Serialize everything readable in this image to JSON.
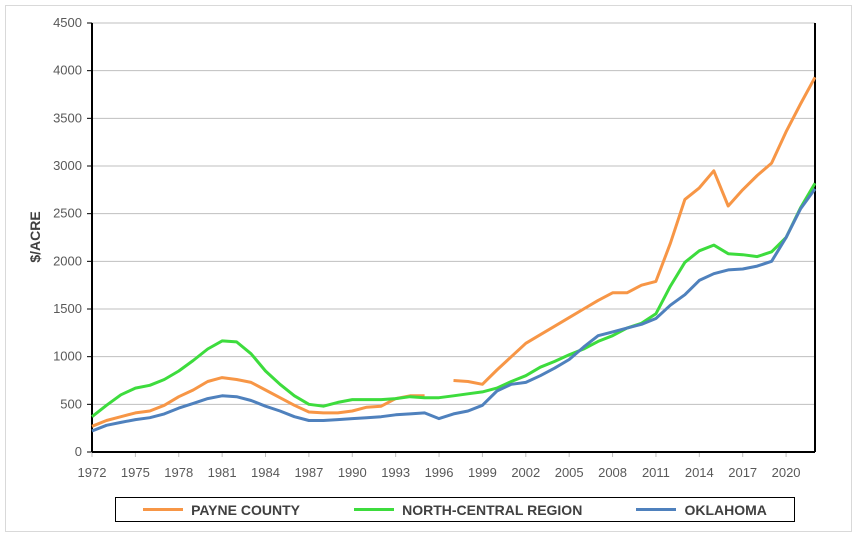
{
  "chart_data": {
    "type": "line",
    "title": "",
    "xlabel": "",
    "ylabel": "$/ACRE",
    "ylim": [
      0,
      4500
    ],
    "xlim": [
      1972,
      2022
    ],
    "yticks": [
      0,
      500,
      1000,
      1500,
      2000,
      2500,
      3000,
      3500,
      4000,
      4500
    ],
    "xticks": [
      1972,
      1975,
      1978,
      1981,
      1984,
      1987,
      1990,
      1993,
      1996,
      1999,
      2002,
      2005,
      2008,
      2011,
      2014,
      2017,
      2020
    ],
    "grid": true,
    "legend_position": "bottom",
    "x": [
      1972,
      1973,
      1974,
      1975,
      1976,
      1977,
      1978,
      1979,
      1980,
      1981,
      1982,
      1983,
      1984,
      1985,
      1986,
      1987,
      1988,
      1989,
      1990,
      1991,
      1992,
      1993,
      1994,
      1995,
      1996,
      1997,
      1998,
      1999,
      2000,
      2001,
      2002,
      2003,
      2004,
      2005,
      2006,
      2007,
      2008,
      2009,
      2010,
      2011,
      2012,
      2013,
      2014,
      2015,
      2016,
      2017,
      2018,
      2019,
      2020,
      2021,
      2022
    ],
    "series": [
      {
        "name": "PAYNE COUNTY",
        "color": "#f79646",
        "values": [
          270,
          330,
          370,
          410,
          430,
          490,
          580,
          650,
          740,
          780,
          760,
          730,
          650,
          570,
          490,
          420,
          410,
          410,
          430,
          470,
          480,
          560,
          590,
          590,
          null,
          750,
          740,
          710,
          860,
          1000,
          1140,
          1230,
          1320,
          1410,
          1500,
          1590,
          1670,
          1670,
          1750,
          1790,
          2190,
          2650,
          2770,
          2950,
          2580,
          2750,
          2900,
          3030,
          3360,
          3650,
          3930
        ]
      },
      {
        "name": "NORTH-CENTRAL REGION",
        "color": "#3ddc3d",
        "values": [
          370,
          490,
          600,
          670,
          700,
          760,
          850,
          960,
          1080,
          1165,
          1155,
          1030,
          850,
          710,
          590,
          500,
          480,
          520,
          550,
          550,
          550,
          560,
          580,
          570,
          570,
          590,
          610,
          630,
          670,
          740,
          800,
          890,
          950,
          1020,
          1080,
          1160,
          1220,
          1300,
          1350,
          1450,
          1740,
          1990,
          2110,
          2170,
          2080,
          2070,
          2050,
          2100,
          2250,
          2560,
          2820
        ]
      },
      {
        "name": "OKLAHOMA",
        "color": "#4f81bd",
        "values": [
          220,
          280,
          310,
          340,
          360,
          400,
          460,
          510,
          560,
          590,
          580,
          540,
          480,
          430,
          370,
          330,
          330,
          340,
          350,
          360,
          370,
          390,
          400,
          410,
          350,
          400,
          430,
          490,
          640,
          710,
          730,
          800,
          880,
          970,
          1100,
          1220,
          1260,
          1300,
          1340,
          1400,
          1540,
          1650,
          1800,
          1870,
          1910,
          1920,
          1950,
          2000,
          2250,
          2550,
          2760
        ]
      }
    ]
  }
}
